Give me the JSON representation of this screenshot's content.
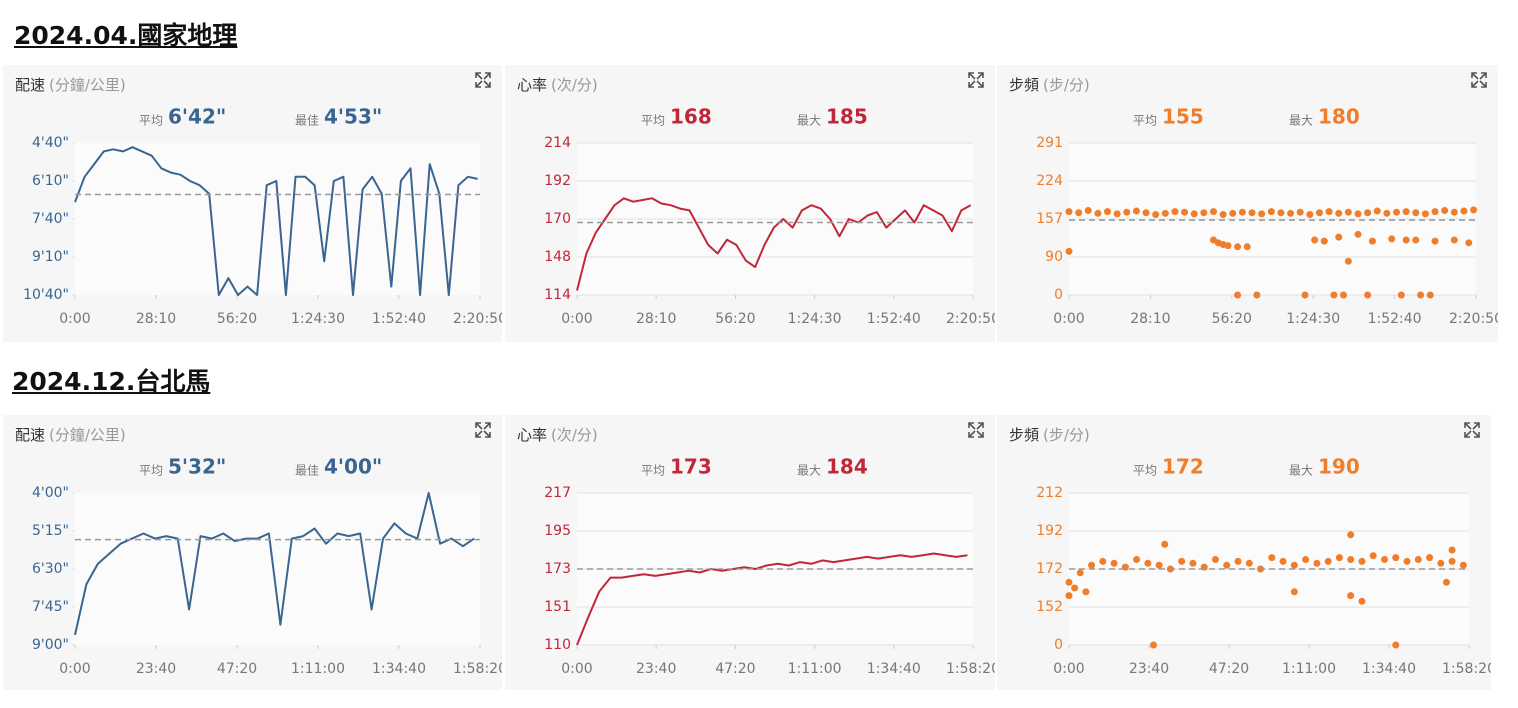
{
  "headings": [
    "2024.04.國家地理",
    "2024.12.台北馬"
  ],
  "chart_data": [
    {
      "type": "line",
      "title": "配速",
      "unit": "(分鐘/公里)",
      "color": "#3a6591",
      "grid": false,
      "stats": [
        {
          "label": "平均",
          "value": 402,
          "value_label": "6'42\""
        },
        {
          "label": "最佳",
          "value": 293,
          "value_label": "4'53\""
        }
      ],
      "xlim": [
        0,
        8450
      ],
      "xticks": [
        {
          "value": 0,
          "label": "0:00"
        },
        {
          "value": 1690,
          "label": "28:10"
        },
        {
          "value": 3380,
          "label": "56:20"
        },
        {
          "value": 5070,
          "label": "1:24:30"
        },
        {
          "value": 6760,
          "label": "1:52:40"
        },
        {
          "value": 8450,
          "label": "2:20:50"
        }
      ],
      "ylim": [
        640,
        280
      ],
      "yticks": [
        {
          "value": 640,
          "label": "10'40\""
        },
        {
          "value": 550,
          "label": "9'10\""
        },
        {
          "value": 460,
          "label": "7'40\""
        },
        {
          "value": 370,
          "label": "6'10\""
        },
        {
          "value": 280,
          "label": "4'40\""
        }
      ],
      "x": [
        0,
        200,
        400,
        600,
        800,
        1000,
        1200,
        1400,
        1600,
        1800,
        2000,
        2200,
        2400,
        2600,
        2800,
        3000,
        3200,
        3400,
        3600,
        3800,
        4000,
        4200,
        4400,
        4600,
        4800,
        5000,
        5200,
        5400,
        5600,
        5800,
        6000,
        6200,
        6400,
        6600,
        6800,
        7000,
        7200,
        7400,
        7600,
        7800,
        8000,
        8200,
        8400
      ],
      "values": [
        420,
        360,
        330,
        300,
        295,
        300,
        290,
        300,
        310,
        340,
        350,
        355,
        370,
        380,
        400,
        640,
        600,
        640,
        620,
        640,
        380,
        370,
        640,
        360,
        360,
        380,
        560,
        370,
        360,
        640,
        390,
        360,
        400,
        620,
        370,
        340,
        640,
        330,
        400,
        640,
        380,
        360,
        365
      ]
    },
    {
      "type": "line",
      "title": "心率",
      "unit": "(次/分)",
      "color": "#c0283a",
      "grid": true,
      "stats": [
        {
          "label": "平均",
          "value": 168
        },
        {
          "label": "最大",
          "value": 185
        }
      ],
      "xlim": [
        0,
        8450
      ],
      "xticks": [
        {
          "value": 0,
          "label": "0:00"
        },
        {
          "value": 1690,
          "label": "28:10"
        },
        {
          "value": 3380,
          "label": "56:20"
        },
        {
          "value": 5070,
          "label": "1:24:30"
        },
        {
          "value": 6760,
          "label": "1:52:40"
        },
        {
          "value": 8450,
          "label": "2:20:50"
        }
      ],
      "ylim": [
        114,
        214
      ],
      "yticks": [
        114,
        148,
        170,
        192,
        214
      ],
      "x": [
        0,
        200,
        400,
        600,
        800,
        1000,
        1200,
        1400,
        1600,
        1800,
        2000,
        2200,
        2400,
        2600,
        2800,
        3000,
        3200,
        3400,
        3600,
        3800,
        4000,
        4200,
        4400,
        4600,
        4800,
        5000,
        5200,
        5400,
        5600,
        5800,
        6000,
        6200,
        6400,
        6600,
        6800,
        7000,
        7200,
        7400,
        7600,
        7800,
        8000,
        8200,
        8400
      ],
      "values": [
        118,
        150,
        162,
        170,
        178,
        182,
        180,
        181,
        182,
        179,
        178,
        176,
        175,
        165,
        155,
        150,
        158,
        155,
        145,
        139,
        155,
        165,
        170,
        165,
        175,
        178,
        176,
        170,
        160,
        170,
        168,
        172,
        174,
        165,
        170,
        175,
        168,
        178,
        175,
        172,
        163,
        175,
        178
      ]
    },
    {
      "type": "scatter",
      "title": "步頻",
      "unit": "(步/分)",
      "color": "#ef7d2a",
      "grid": true,
      "stats": [
        {
          "label": "平均",
          "value": 155
        },
        {
          "label": "最大",
          "value": 180
        }
      ],
      "xlim": [
        0,
        8450
      ],
      "xticks": [
        {
          "value": 0,
          "label": "0:00"
        },
        {
          "value": 1690,
          "label": "28:10"
        },
        {
          "value": 3380,
          "label": "56:20"
        },
        {
          "value": 5070,
          "label": "1:24:30"
        },
        {
          "value": 6760,
          "label": "1:52:40"
        },
        {
          "value": 8450,
          "label": "2:20:50"
        }
      ],
      "ylim": [
        0,
        291
      ],
      "yticks": [
        0,
        90,
        157,
        224,
        291
      ],
      "x": [
        0,
        200,
        400,
        600,
        800,
        1000,
        1200,
        1400,
        1600,
        1800,
        2000,
        2200,
        2400,
        2600,
        2800,
        3000,
        3200,
        3400,
        3600,
        3800,
        4000,
        4200,
        4400,
        4600,
        4800,
        5000,
        5200,
        5400,
        5600,
        5800,
        6000,
        6200,
        6400,
        6600,
        6800,
        7000,
        7200,
        7400,
        7600,
        7800,
        8000,
        8200,
        8400,
        0,
        3000,
        3100,
        3200,
        3300,
        3500,
        3700,
        5100,
        5300,
        5600,
        5800,
        6000,
        6300,
        6700,
        7000,
        7200,
        7600,
        8000,
        8300,
        3500,
        3900,
        4900,
        5500,
        5700,
        6200,
        6900,
        7300,
        7500
      ],
      "values": [
        170,
        168,
        172,
        167,
        170,
        166,
        169,
        171,
        168,
        165,
        167,
        170,
        169,
        166,
        168,
        170,
        165,
        167,
        169,
        168,
        166,
        170,
        168,
        167,
        169,
        165,
        168,
        170,
        167,
        169,
        166,
        168,
        171,
        167,
        169,
        170,
        168,
        166,
        170,
        172,
        169,
        171,
        173,
        100,
        120,
        115,
        112,
        110,
        108,
        108,
        120,
        118,
        125,
        80,
        130,
        118,
        122,
        120,
        120,
        118,
        120,
        115,
        0,
        0,
        0,
        0,
        0,
        0,
        0,
        0,
        0
      ]
    },
    {
      "type": "line",
      "title": "配速",
      "unit": "(分鐘/公里)",
      "color": "#3a6591",
      "grid": false,
      "stats": [
        {
          "label": "平均",
          "value": 332,
          "value_label": "5'32\""
        },
        {
          "label": "最佳",
          "value": 240,
          "value_label": "4'00\""
        }
      ],
      "xlim": [
        0,
        7100
      ],
      "xticks": [
        {
          "value": 0,
          "label": "0:00"
        },
        {
          "value": 1420,
          "label": "23:40"
        },
        {
          "value": 2840,
          "label": "47:20"
        },
        {
          "value": 4260,
          "label": "1:11:00"
        },
        {
          "value": 5680,
          "label": "1:34:40"
        },
        {
          "value": 7100,
          "label": "1:58:20"
        }
      ],
      "ylim": [
        540,
        240
      ],
      "yticks": [
        {
          "value": 540,
          "label": "9'00\""
        },
        {
          "value": 465,
          "label": "7'45\""
        },
        {
          "value": 390,
          "label": "6'30\""
        },
        {
          "value": 315,
          "label": "5'15\""
        },
        {
          "value": 240,
          "label": "4'00\""
        }
      ],
      "x": [
        0,
        200,
        400,
        600,
        800,
        1000,
        1200,
        1400,
        1600,
        1800,
        2000,
        2200,
        2400,
        2600,
        2800,
        3000,
        3200,
        3400,
        3600,
        3800,
        4000,
        4200,
        4400,
        4600,
        4800,
        5000,
        5200,
        5400,
        5600,
        5800,
        6000,
        6200,
        6400,
        6600,
        6800,
        7000
      ],
      "values": [
        520,
        420,
        380,
        360,
        340,
        330,
        320,
        330,
        325,
        330,
        470,
        325,
        330,
        320,
        335,
        330,
        330,
        320,
        500,
        330,
        325,
        310,
        340,
        320,
        325,
        320,
        470,
        330,
        300,
        320,
        330,
        240,
        340,
        330,
        345,
        330
      ]
    },
    {
      "type": "line",
      "title": "心率",
      "unit": "(次/分)",
      "color": "#c0283a",
      "grid": true,
      "stats": [
        {
          "label": "平均",
          "value": 173
        },
        {
          "label": "最大",
          "value": 184
        }
      ],
      "xlim": [
        0,
        7100
      ],
      "xticks": [
        {
          "value": 0,
          "label": "0:00"
        },
        {
          "value": 1420,
          "label": "23:40"
        },
        {
          "value": 2840,
          "label": "47:20"
        },
        {
          "value": 4260,
          "label": "1:11:00"
        },
        {
          "value": 5680,
          "label": "1:34:40"
        },
        {
          "value": 7100,
          "label": "1:58:20"
        }
      ],
      "ylim": [
        110,
        217
      ],
      "yticks": [
        110,
        151,
        173,
        195,
        217
      ],
      "x": [
        0,
        200,
        400,
        600,
        800,
        1000,
        1200,
        1400,
        1600,
        1800,
        2000,
        2200,
        2400,
        2600,
        2800,
        3000,
        3200,
        3400,
        3600,
        3800,
        4000,
        4200,
        4400,
        4600,
        4800,
        5000,
        5200,
        5400,
        5600,
        5800,
        6000,
        6200,
        6400,
        6600,
        6800,
        7000
      ],
      "values": [
        110,
        140,
        160,
        168,
        168,
        169,
        170,
        169,
        170,
        171,
        172,
        171,
        173,
        172,
        173,
        174,
        173,
        175,
        176,
        175,
        177,
        176,
        178,
        177,
        178,
        179,
        180,
        179,
        180,
        181,
        180,
        181,
        182,
        181,
        180,
        181
      ]
    },
    {
      "type": "scatter",
      "title": "步頻",
      "unit": "(步/分)",
      "color": "#ef7d2a",
      "grid": true,
      "stats": [
        {
          "label": "平均",
          "value": 172
        },
        {
          "label": "最大",
          "value": 190
        }
      ],
      "xlim": [
        0,
        7100
      ],
      "xticks": [
        {
          "value": 0,
          "label": "0:00"
        },
        {
          "value": 1420,
          "label": "23:40"
        },
        {
          "value": 2840,
          "label": "47:20"
        },
        {
          "value": 4260,
          "label": "1:11:00"
        },
        {
          "value": 5680,
          "label": "1:34:40"
        },
        {
          "value": 7100,
          "label": "1:58:20"
        }
      ],
      "ylim": [
        0,
        212
      ],
      "yticks": [
        0,
        152,
        172,
        192,
        212
      ],
      "x": [
        0,
        200,
        400,
        600,
        800,
        1000,
        1200,
        1400,
        1600,
        1800,
        2000,
        2200,
        2400,
        2600,
        2800,
        3000,
        3200,
        3400,
        3600,
        3800,
        4000,
        4200,
        4400,
        4600,
        4800,
        5000,
        5200,
        5400,
        5600,
        5800,
        6000,
        6200,
        6400,
        6600,
        6800,
        7000,
        0,
        100,
        300,
        1500,
        5800,
        1700,
        5000,
        6800,
        5000,
        5200,
        4000,
        6700
      ],
      "values": [
        165,
        170,
        174,
        176,
        175,
        173,
        177,
        175,
        174,
        172,
        176,
        175,
        173,
        177,
        174,
        176,
        175,
        172,
        178,
        176,
        174,
        177,
        175,
        176,
        178,
        177,
        176,
        179,
        177,
        178,
        176,
        177,
        178,
        175,
        176,
        174,
        158,
        162,
        160,
        0,
        0,
        185,
        190,
        182,
        158,
        155,
        160,
        165
      ]
    }
  ]
}
